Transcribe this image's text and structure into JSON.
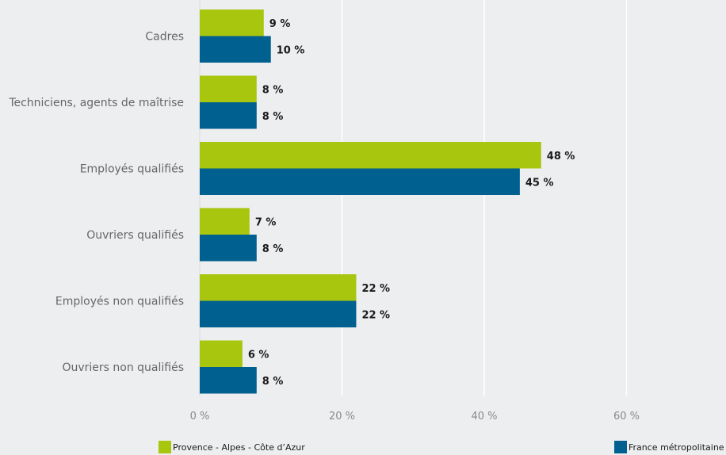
{
  "chart_data": {
    "type": "bar",
    "orientation": "horizontal",
    "categories": [
      "Cadres",
      "Techniciens, agents de maîtrise",
      "Employés qualifiés",
      "Ouvriers qualifiés",
      "Employés non qualifiés",
      "Ouvriers non qualifiés"
    ],
    "series": [
      {
        "name": "Provence - Alpes - Côte d’Azur",
        "color": "#a8c60e",
        "values": [
          9,
          8,
          48,
          7,
          22,
          6
        ],
        "value_labels": [
          "9 %",
          "8 %",
          "48 %",
          "7 %",
          "22 %",
          "6 %"
        ]
      },
      {
        "name": "France métropolitaine",
        "color": "#00608f",
        "values": [
          10,
          8,
          45,
          8,
          22,
          8
        ],
        "value_labels": [
          "10 %",
          "8 %",
          "45 %",
          "8 %",
          "22 %",
          "8 %"
        ]
      }
    ],
    "xlim": [
      0,
      60
    ],
    "xticks": [
      0,
      20,
      40,
      60
    ],
    "xtick_labels": [
      "0 %",
      "20 %",
      "40 %",
      "60 %"
    ],
    "grid": true,
    "legend_position": "bottom"
  }
}
